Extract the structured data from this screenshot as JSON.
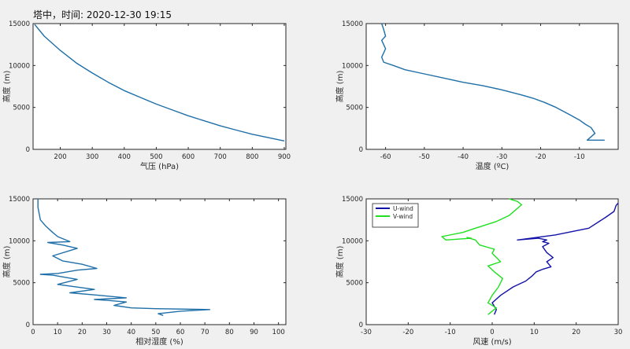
{
  "title": "塔中，时间: 2020-12-30 19:15",
  "chart_data": [
    {
      "type": "line",
      "xlabel": "气压 (hPa)",
      "ylabel": "高度 (m)",
      "xlim": [
        115,
        905
      ],
      "ylim": [
        0,
        15000
      ],
      "xticks": [
        200,
        300,
        400,
        500,
        600,
        700,
        800,
        900
      ],
      "yticks": [
        0,
        5000,
        10000,
        15000
      ],
      "grid": false,
      "series": [
        {
          "color": "#1f6fa8",
          "x": [
            120,
            150,
            200,
            250,
            300,
            350,
            400,
            450,
            500,
            550,
            600,
            650,
            700,
            750,
            800,
            850,
            900
          ],
          "y": [
            14900,
            13500,
            11800,
            10300,
            9100,
            8000,
            7000,
            6200,
            5400,
            4700,
            4000,
            3400,
            2800,
            2300,
            1800,
            1400,
            1000
          ]
        }
      ]
    },
    {
      "type": "line",
      "xlabel": "温度 (ºC)",
      "ylabel": "高度 (m)",
      "xlim": [
        -65,
        0
      ],
      "ylim": [
        0,
        15000
      ],
      "xticks": [
        -60,
        -50,
        -40,
        -30,
        -20,
        -10
      ],
      "yticks": [
        0,
        5000,
        10000,
        15000
      ],
      "grid": false,
      "series": [
        {
          "color": "#1f6fa8",
          "x": [
            -3.5,
            -8,
            -6,
            -7,
            -8.5,
            -10,
            -12,
            -14,
            -16,
            -19,
            -22,
            -25,
            -30,
            -35,
            -40,
            -45,
            -50,
            -55,
            -58,
            -60.5,
            -61,
            -60.5,
            -60,
            -60.5,
            -61,
            -60,
            -60.5,
            -61
          ],
          "y": [
            1100,
            1100,
            1900,
            2600,
            3000,
            3500,
            4000,
            4500,
            5000,
            5600,
            6100,
            6500,
            7100,
            7600,
            8000,
            8500,
            9000,
            9500,
            10000,
            10400,
            11000,
            11500,
            12000,
            12500,
            13000,
            13500,
            14300,
            15000
          ]
        }
      ]
    },
    {
      "type": "line",
      "xlabel": "相对湿度 (%)",
      "ylabel": "高度 (m)",
      "xlim": [
        0,
        103
      ],
      "ylim": [
        0,
        15000
      ],
      "xticks": [
        0,
        10,
        20,
        30,
        40,
        50,
        60,
        70,
        80,
        90,
        100
      ],
      "yticks": [
        0,
        5000,
        10000,
        15000
      ],
      "grid": false,
      "series": [
        {
          "color": "#1f6fa8",
          "x": [
            53,
            51,
            60,
            72,
            50,
            40,
            33,
            38,
            30,
            25,
            38,
            27,
            15,
            25,
            10,
            18,
            8,
            3,
            10,
            18,
            26,
            20,
            12,
            8,
            18,
            12,
            6,
            15,
            10,
            8,
            5,
            3,
            2,
            2
          ],
          "y": [
            1100,
            1300,
            1600,
            1800,
            1900,
            2000,
            2300,
            2700,
            2900,
            3000,
            3200,
            3500,
            3800,
            4200,
            4800,
            5400,
            5900,
            6000,
            6100,
            6500,
            6700,
            7200,
            7600,
            8200,
            9100,
            9500,
            9800,
            9900,
            10500,
            11000,
            11800,
            12500,
            14000,
            15000
          ]
        }
      ]
    },
    {
      "type": "line",
      "xlabel": "风速 (m/s)",
      "ylabel": "高度 (m)",
      "xlim": [
        -30,
        30
      ],
      "ylim": [
        0,
        15000
      ],
      "xticks": [
        -30,
        -20,
        -10,
        0,
        10,
        20,
        30
      ],
      "yticks": [
        0,
        5000,
        10000,
        15000
      ],
      "grid": false,
      "legend": "top-left",
      "series": [
        {
          "name": "U-wind",
          "color": "#1212a8",
          "x": [
            0.5,
            1,
            0,
            2,
            5,
            8,
            9.5,
            10.5,
            12,
            14,
            13,
            14.5,
            13,
            12,
            13.5,
            12,
            13,
            12,
            11,
            6,
            15,
            23,
            27,
            29,
            29.5,
            30
          ],
          "y": [
            1200,
            1800,
            2600,
            3500,
            4500,
            5200,
            5800,
            6300,
            6600,
            6900,
            7500,
            8000,
            8600,
            9300,
            9700,
            9900,
            10100,
            10200,
            10300,
            10100,
            10700,
            11500,
            12800,
            13500,
            14200,
            14500
          ]
        },
        {
          "name": "V-wind",
          "color": "#1ee01e",
          "x": [
            -1,
            1,
            -1,
            0,
            1.5,
            2.5,
            0.5,
            -1,
            2,
            0,
            0.5,
            -3,
            -4,
            -6,
            -5,
            -11,
            -12,
            -7,
            -4,
            1,
            4,
            7,
            6,
            4
          ],
          "y": [
            1200,
            2000,
            2600,
            3500,
            4500,
            5500,
            6300,
            7000,
            7500,
            8500,
            9000,
            9500,
            10100,
            10400,
            10300,
            10100,
            10500,
            11000,
            11500,
            12300,
            13000,
            14300,
            14700,
            15000
          ]
        }
      ]
    }
  ]
}
